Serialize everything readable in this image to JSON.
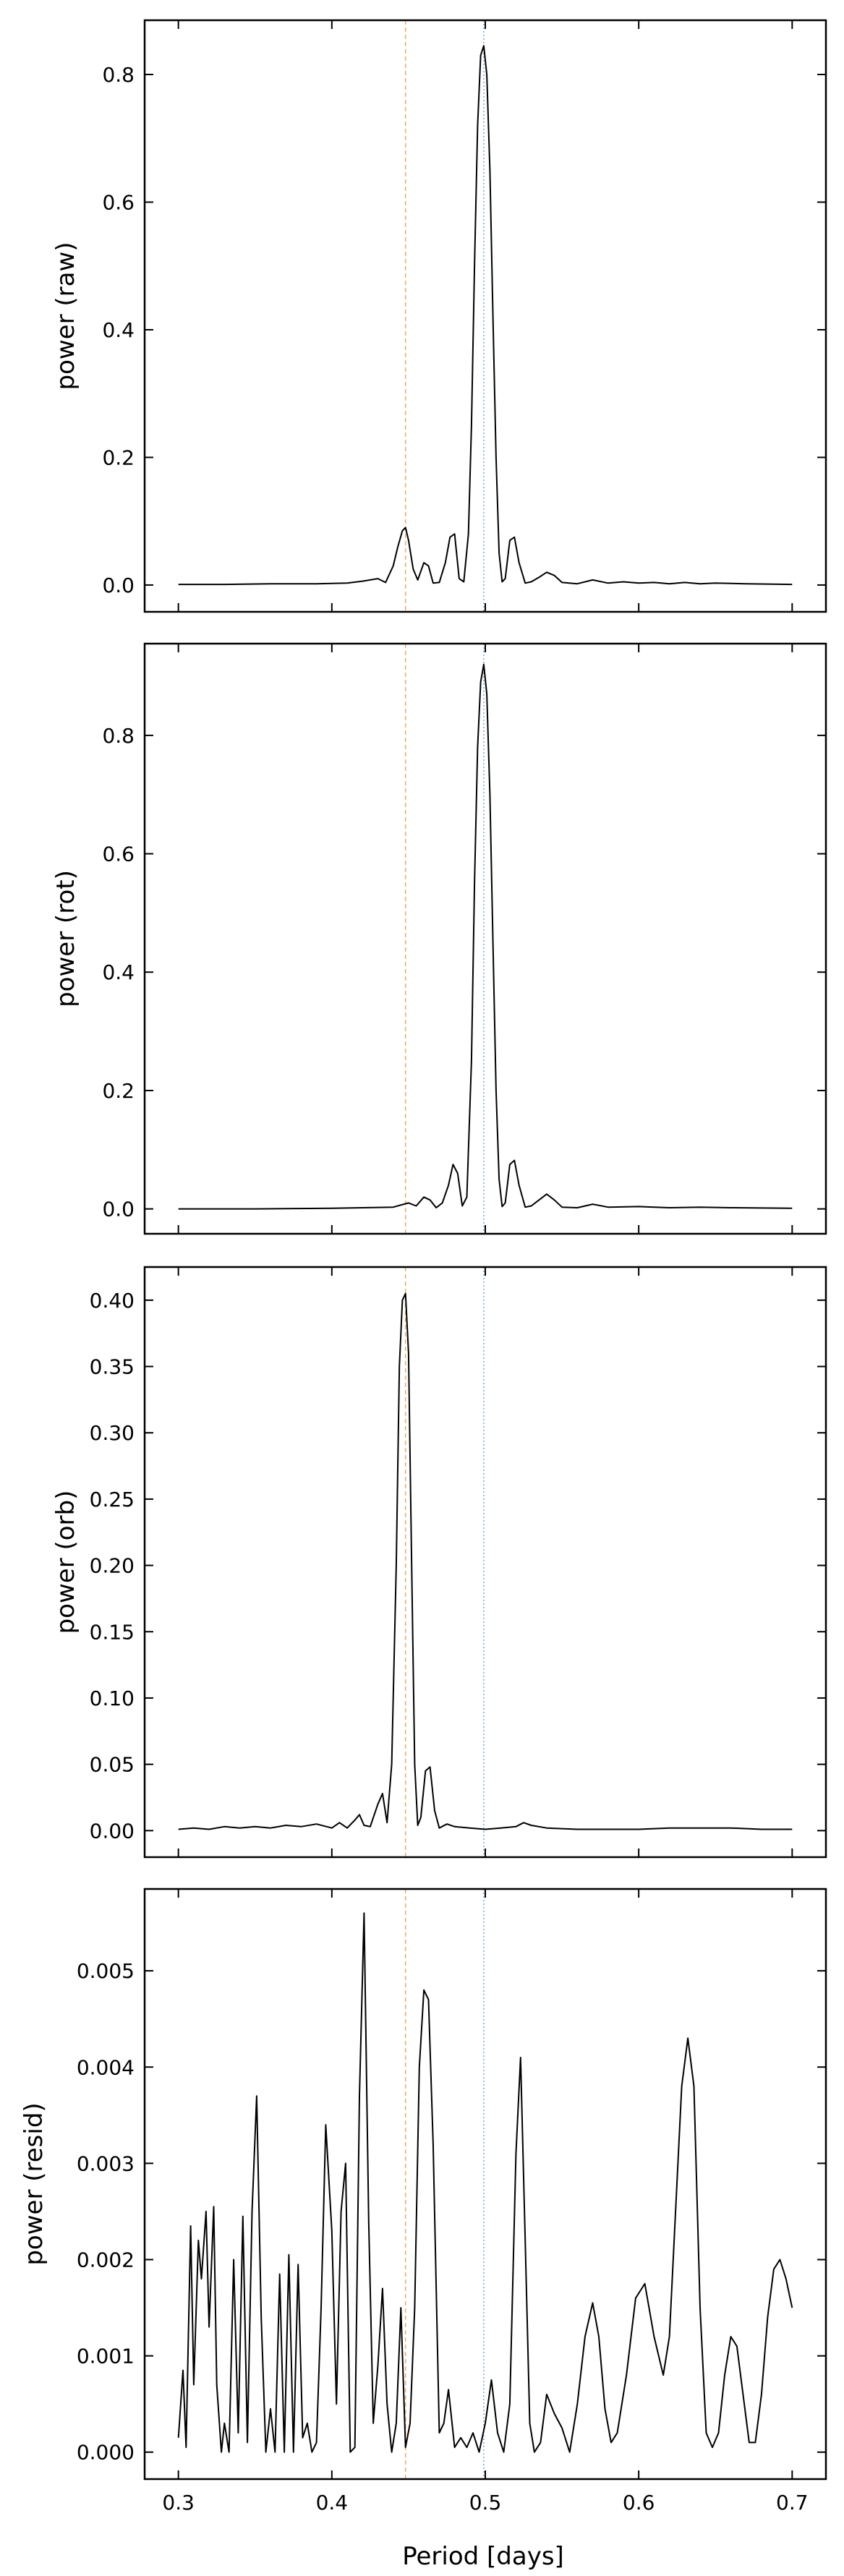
{
  "figure": {
    "xlabel": "Period [days]",
    "x_ticks": [
      0.3,
      0.4,
      0.5,
      0.6,
      0.7
    ],
    "x_tick_labels": [
      "0.3",
      "0.4",
      "0.5",
      "0.6",
      "0.7"
    ],
    "xlim": [
      0.278,
      0.722
    ],
    "vlines": [
      {
        "x": 0.448,
        "color": "#f5b050",
        "style": "dashed"
      },
      {
        "x": 0.499,
        "color": "#7aaee6",
        "style": "dotted"
      }
    ],
    "line_color": "#000000"
  },
  "chart_data": [
    {
      "type": "line",
      "ylabel": "power (raw)",
      "ylim": [
        -0.042,
        0.885
      ],
      "y_ticks": [
        0.0,
        0.2,
        0.4,
        0.6,
        0.8
      ],
      "y_tick_labels": [
        "0.0",
        "0.2",
        "0.4",
        "0.6",
        "0.8"
      ],
      "x": [
        0.3,
        0.33,
        0.36,
        0.39,
        0.41,
        0.42,
        0.43,
        0.435,
        0.44,
        0.443,
        0.446,
        0.448,
        0.45,
        0.453,
        0.456,
        0.46,
        0.463,
        0.466,
        0.47,
        0.474,
        0.477,
        0.48,
        0.483,
        0.486,
        0.489,
        0.491,
        0.493,
        0.495,
        0.497,
        0.499,
        0.501,
        0.503,
        0.505,
        0.507,
        0.509,
        0.511,
        0.513,
        0.516,
        0.519,
        0.522,
        0.526,
        0.53,
        0.535,
        0.54,
        0.545,
        0.55,
        0.56,
        0.57,
        0.58,
        0.59,
        0.6,
        0.61,
        0.62,
        0.63,
        0.64,
        0.65,
        0.67,
        0.7
      ],
      "y": [
        0.001,
        0.001,
        0.002,
        0.002,
        0.003,
        0.006,
        0.01,
        0.004,
        0.03,
        0.06,
        0.085,
        0.09,
        0.07,
        0.025,
        0.008,
        0.035,
        0.03,
        0.003,
        0.004,
        0.035,
        0.075,
        0.08,
        0.01,
        0.005,
        0.08,
        0.25,
        0.5,
        0.72,
        0.83,
        0.845,
        0.8,
        0.65,
        0.42,
        0.2,
        0.05,
        0.005,
        0.01,
        0.07,
        0.075,
        0.035,
        0.003,
        0.005,
        0.012,
        0.02,
        0.015,
        0.004,
        0.002,
        0.008,
        0.003,
        0.005,
        0.003,
        0.004,
        0.002,
        0.004,
        0.002,
        0.003,
        0.002,
        0.001
      ]
    },
    {
      "type": "line",
      "ylabel": "power (rot)",
      "ylim": [
        -0.042,
        0.955
      ],
      "y_ticks": [
        0.0,
        0.2,
        0.4,
        0.6,
        0.8
      ],
      "y_tick_labels": [
        "0.0",
        "0.2",
        "0.4",
        "0.6",
        "0.8"
      ],
      "x": [
        0.3,
        0.35,
        0.4,
        0.42,
        0.44,
        0.45,
        0.455,
        0.46,
        0.464,
        0.468,
        0.472,
        0.476,
        0.479,
        0.482,
        0.485,
        0.488,
        0.491,
        0.493,
        0.495,
        0.497,
        0.499,
        0.501,
        0.503,
        0.505,
        0.507,
        0.509,
        0.511,
        0.513,
        0.516,
        0.519,
        0.522,
        0.526,
        0.53,
        0.535,
        0.54,
        0.545,
        0.55,
        0.56,
        0.57,
        0.58,
        0.6,
        0.62,
        0.64,
        0.66,
        0.7
      ],
      "y": [
        0.0,
        0.0,
        0.001,
        0.002,
        0.003,
        0.01,
        0.005,
        0.02,
        0.015,
        0.002,
        0.01,
        0.04,
        0.075,
        0.06,
        0.005,
        0.02,
        0.25,
        0.55,
        0.78,
        0.89,
        0.92,
        0.87,
        0.7,
        0.45,
        0.2,
        0.05,
        0.004,
        0.01,
        0.075,
        0.082,
        0.04,
        0.003,
        0.005,
        0.015,
        0.025,
        0.015,
        0.003,
        0.002,
        0.008,
        0.003,
        0.004,
        0.002,
        0.003,
        0.002,
        0.001
      ]
    },
    {
      "type": "line",
      "ylabel": "power (orb)",
      "ylim": [
        -0.02,
        0.425
      ],
      "y_ticks": [
        0.0,
        0.05,
        0.1,
        0.15,
        0.2,
        0.25,
        0.3,
        0.35,
        0.4
      ],
      "y_tick_labels": [
        "0.00",
        "0.05",
        "0.10",
        "0.15",
        "0.20",
        "0.25",
        "0.30",
        "0.35",
        "0.40"
      ],
      "x": [
        0.3,
        0.31,
        0.32,
        0.33,
        0.34,
        0.35,
        0.36,
        0.37,
        0.38,
        0.39,
        0.4,
        0.405,
        0.41,
        0.415,
        0.418,
        0.421,
        0.425,
        0.43,
        0.433,
        0.436,
        0.439,
        0.442,
        0.444,
        0.446,
        0.448,
        0.45,
        0.452,
        0.454,
        0.456,
        0.458,
        0.461,
        0.464,
        0.467,
        0.47,
        0.475,
        0.48,
        0.49,
        0.5,
        0.51,
        0.52,
        0.525,
        0.53,
        0.54,
        0.56,
        0.58,
        0.6,
        0.62,
        0.64,
        0.66,
        0.68,
        0.7
      ],
      "y": [
        0.001,
        0.002,
        0.001,
        0.003,
        0.002,
        0.003,
        0.002,
        0.004,
        0.003,
        0.005,
        0.002,
        0.006,
        0.002,
        0.008,
        0.012,
        0.004,
        0.003,
        0.02,
        0.028,
        0.006,
        0.05,
        0.2,
        0.35,
        0.4,
        0.405,
        0.36,
        0.2,
        0.05,
        0.004,
        0.01,
        0.045,
        0.048,
        0.015,
        0.002,
        0.005,
        0.003,
        0.002,
        0.001,
        0.002,
        0.003,
        0.006,
        0.004,
        0.002,
        0.001,
        0.001,
        0.001,
        0.002,
        0.002,
        0.002,
        0.001,
        0.001
      ]
    },
    {
      "type": "line",
      "ylabel": "power (resid)",
      "ylim": [
        -0.00028,
        0.00585
      ],
      "y_ticks": [
        0.0,
        0.001,
        0.002,
        0.003,
        0.004,
        0.005
      ],
      "y_tick_labels": [
        "0.000",
        "0.001",
        "0.002",
        "0.003",
        "0.004",
        "0.005"
      ],
      "x": [
        0.3,
        0.303,
        0.305,
        0.308,
        0.31,
        0.313,
        0.315,
        0.318,
        0.32,
        0.323,
        0.325,
        0.328,
        0.33,
        0.333,
        0.336,
        0.339,
        0.342,
        0.345,
        0.348,
        0.351,
        0.354,
        0.357,
        0.36,
        0.363,
        0.366,
        0.369,
        0.372,
        0.375,
        0.378,
        0.381,
        0.384,
        0.387,
        0.39,
        0.393,
        0.396,
        0.4,
        0.403,
        0.406,
        0.409,
        0.412,
        0.415,
        0.418,
        0.421,
        0.424,
        0.427,
        0.43,
        0.433,
        0.436,
        0.439,
        0.442,
        0.445,
        0.448,
        0.451,
        0.454,
        0.457,
        0.46,
        0.463,
        0.466,
        0.47,
        0.473,
        0.476,
        0.48,
        0.484,
        0.488,
        0.492,
        0.496,
        0.5,
        0.504,
        0.508,
        0.512,
        0.516,
        0.52,
        0.523,
        0.526,
        0.529,
        0.532,
        0.536,
        0.54,
        0.545,
        0.55,
        0.555,
        0.56,
        0.565,
        0.57,
        0.574,
        0.578,
        0.582,
        0.586,
        0.592,
        0.598,
        0.604,
        0.61,
        0.616,
        0.62,
        0.624,
        0.628,
        0.632,
        0.636,
        0.64,
        0.644,
        0.648,
        0.652,
        0.656,
        0.66,
        0.664,
        0.668,
        0.672,
        0.676,
        0.68,
        0.684,
        0.688,
        0.692,
        0.696,
        0.7
      ],
      "y": [
        0.00015,
        0.00085,
        5e-05,
        0.00235,
        0.0007,
        0.0022,
        0.0018,
        0.0025,
        0.0013,
        0.00255,
        0.0007,
        0.0,
        0.0003,
        0.0,
        0.002,
        0.0002,
        0.00245,
        0.0001,
        0.0025,
        0.0037,
        0.0014,
        0.0,
        0.00045,
        0.0,
        0.00185,
        0.0,
        0.00205,
        0.0,
        0.00195,
        0.00015,
        0.0003,
        0.0,
        0.0001,
        0.0015,
        0.0034,
        0.0023,
        0.0005,
        0.0025,
        0.003,
        0.0,
        5e-05,
        0.0037,
        0.0056,
        0.0024,
        0.0003,
        0.0009,
        0.0017,
        0.0005,
        0.0,
        0.0003,
        0.0015,
        5e-05,
        0.0003,
        0.0015,
        0.004,
        0.0048,
        0.0047,
        0.0032,
        0.0002,
        0.0003,
        0.00065,
        5e-05,
        0.00015,
        5e-05,
        0.0002,
        0.0,
        0.0003,
        0.00075,
        0.0002,
        0.0,
        0.0005,
        0.0031,
        0.0041,
        0.0022,
        0.0003,
        0.0,
        0.0001,
        0.0006,
        0.0004,
        0.00025,
        0.0,
        0.0005,
        0.0012,
        0.00155,
        0.0012,
        0.00045,
        0.0001,
        0.0002,
        0.0008,
        0.0016,
        0.00175,
        0.0012,
        0.0008,
        0.0012,
        0.0025,
        0.0038,
        0.0043,
        0.0038,
        0.0015,
        0.0002,
        5e-05,
        0.0002,
        0.0008,
        0.0012,
        0.0011,
        0.0006,
        0.0001,
        0.0001,
        0.0006,
        0.0014,
        0.0019,
        0.002,
        0.0018,
        0.0015
      ]
    }
  ]
}
